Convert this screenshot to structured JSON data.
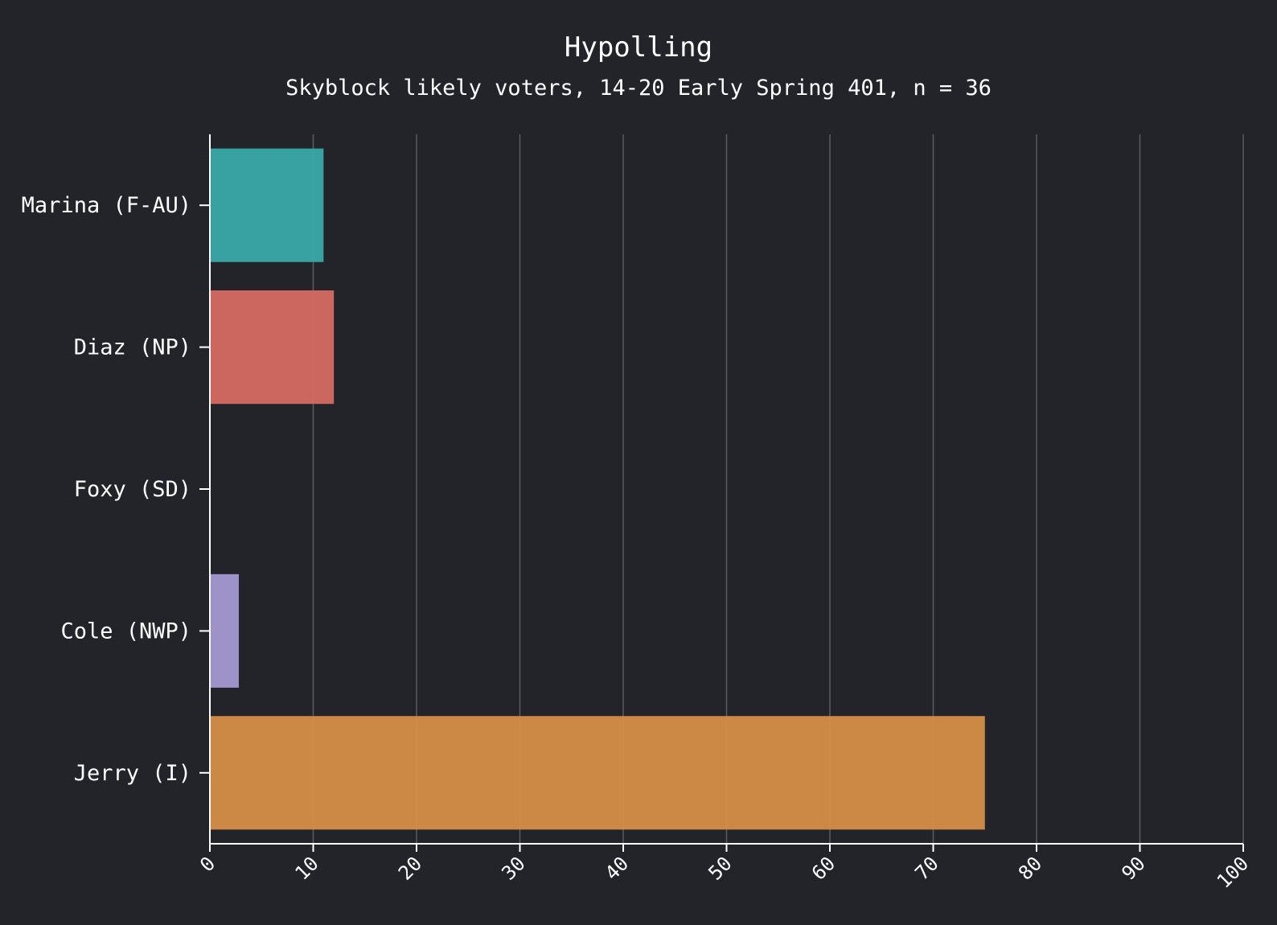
{
  "chart_data": {
    "type": "bar",
    "orientation": "horizontal",
    "title": "Hypolling",
    "subtitle": "Skyblock likely voters, 14-20 Early Spring 401, n = 36",
    "xlabel": "",
    "ylabel": "",
    "categories": [
      "Marina (F-AU)",
      "Diaz (NP)",
      "Foxy (SD)",
      "Cole (NWP)",
      "Jerry (I)"
    ],
    "values": [
      11,
      12,
      0,
      2.8,
      75
    ],
    "colors": [
      "#3aa9a9",
      "#d66b62",
      "#8a8a8a",
      "#a49ad2",
      "#d68f47"
    ],
    "xlim": [
      0,
      100
    ],
    "xticks": [
      "0",
      "10",
      "20",
      "30",
      "40",
      "50",
      "60",
      "70",
      "80",
      "90",
      "100"
    ],
    "xtick_values": [
      0,
      10,
      20,
      30,
      40,
      50,
      60,
      70,
      80,
      90,
      100
    ],
    "grid": "vertical",
    "legend": "none"
  }
}
